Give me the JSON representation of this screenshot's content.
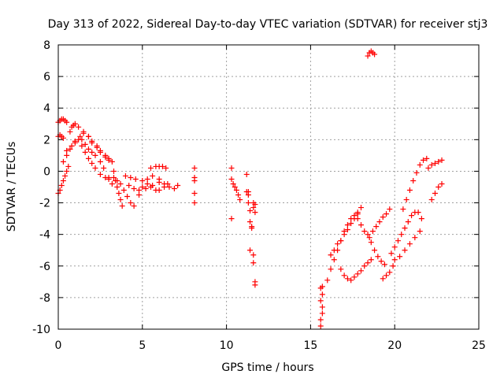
{
  "chart_data": {
    "type": "scatter",
    "title": "Day 313 of 2022, Sidereal Day-to-day VTEC variation (SDTVAR) for receiver stj3",
    "xlabel": "GPS time / hours",
    "ylabel": "SDTVAR / TECUs",
    "xlim": [
      0,
      25
    ],
    "ylim": [
      -10,
      8
    ],
    "xticks": [
      0,
      5,
      10,
      15,
      20,
      25
    ],
    "xtick_labels": [
      "0",
      "5",
      "10",
      "15",
      "20",
      "25"
    ],
    "yticks": [
      -10,
      -8,
      -6,
      -4,
      -2,
      0,
      2,
      4,
      6,
      8
    ],
    "ytick_labels": [
      "-10",
      "-8",
      "-6",
      "-4",
      "-2",
      "0",
      "2",
      "4",
      "6",
      "8"
    ],
    "grid": true,
    "marker": "+",
    "color": "#ff0000",
    "series": [
      {
        "name": "SDTVAR",
        "x": [
          0.0,
          0.1,
          0.2,
          0.3,
          0.4,
          0.5,
          0.0,
          0.1,
          0.2,
          0.3,
          0.0,
          0.1,
          0.2,
          0.3,
          0.4,
          0.5,
          0.6,
          0.7,
          0.8,
          0.9,
          1.0,
          1.2,
          1.5,
          1.8,
          2.0,
          2.3,
          2.5,
          2.8,
          3.0,
          0.5,
          0.8,
          1.0,
          1.3,
          1.5,
          1.8,
          2.0,
          2.3,
          2.5,
          2.8,
          3.0,
          3.2,
          0.3,
          0.5,
          0.7,
          1.0,
          1.2,
          1.4,
          1.6,
          1.8,
          2.0,
          2.2,
          2.5,
          2.8,
          3.0,
          3.3,
          1.4,
          1.6,
          1.8,
          2.0,
          2.2,
          2.5,
          2.7,
          3.0,
          3.2,
          3.3,
          3.4,
          3.5,
          3.6,
          3.7,
          3.8,
          3.5,
          3.7,
          3.9,
          4.1,
          4.3,
          4.5,
          4.8,
          5.0,
          5.3,
          5.5,
          5.8,
          6.0,
          6.3,
          6.5,
          4.0,
          4.3,
          4.6,
          5.0,
          5.3,
          5.6,
          6.0,
          6.3,
          6.6,
          6.9,
          7.1,
          4.2,
          4.5,
          4.8,
          5.2,
          5.6,
          6.0,
          5.5,
          5.8,
          6.0,
          6.2,
          6.4,
          8.1,
          8.1,
          8.1,
          8.1,
          8.1,
          10.3,
          10.3,
          10.4,
          10.5,
          10.6,
          10.7,
          10.8,
          10.3,
          11.2,
          11.3,
          11.3,
          11.4,
          11.4,
          11.5,
          11.6,
          11.6,
          11.7,
          11.7,
          11.7,
          11.7,
          11.2,
          11.3,
          11.4,
          11.5,
          11.6,
          11.6,
          15.6,
          15.6,
          15.7,
          15.7,
          15.6,
          15.7,
          15.6,
          15.7,
          16.0,
          16.2,
          16.4,
          16.6,
          16.8,
          17.0,
          17.2,
          17.4,
          17.6,
          17.8,
          18.0,
          16.2,
          16.4,
          16.6,
          16.8,
          17.0,
          17.2,
          17.4,
          17.6,
          17.8,
          16.8,
          17.0,
          17.2,
          17.4,
          17.6,
          17.8,
          18.0,
          18.2,
          18.4,
          18.6,
          17.8,
          18.0,
          18.2,
          18.4,
          18.6,
          18.8,
          19.0,
          19.2,
          19.4,
          18.5,
          18.7,
          18.9,
          19.1,
          19.3,
          19.5,
          19.7,
          18.4,
          18.5,
          18.6,
          18.7,
          18.8,
          19.3,
          19.5,
          19.7,
          19.9,
          19.8,
          20.0,
          20.2,
          20.4,
          20.6,
          20.8,
          21.0,
          21.2,
          21.4,
          21.6,
          20.5,
          20.7,
          20.9,
          21.1,
          21.3,
          21.5,
          21.7,
          21.9,
          20.0,
          20.3,
          20.6,
          20.9,
          21.2,
          21.5,
          22.0,
          22.2,
          22.4,
          22.6,
          22.8,
          22.2,
          22.4,
          22.6,
          22.8
        ],
        "y": [
          3.1,
          3.2,
          3.3,
          3.3,
          3.2,
          3.1,
          2.2,
          2.3,
          2.2,
          2.1,
          -1.4,
          -1.2,
          -0.9,
          -0.6,
          -0.3,
          0.0,
          0.3,
          2.5,
          2.8,
          2.9,
          3.0,
          2.8,
          2.5,
          2.2,
          1.8,
          1.5,
          1.2,
          0.9,
          0.7,
          1.3,
          1.6,
          1.9,
          2.2,
          2.4,
          2.2,
          1.9,
          1.6,
          1.3,
          1.0,
          0.8,
          0.6,
          0.6,
          1.0,
          1.4,
          1.8,
          2.0,
          1.6,
          1.2,
          0.8,
          0.5,
          0.2,
          -0.2,
          -0.4,
          -0.5,
          -0.4,
          2.0,
          1.7,
          1.4,
          1.2,
          1.0,
          0.6,
          0.2,
          -0.4,
          -0.8,
          0.0,
          -0.6,
          -1.0,
          -1.4,
          -1.8,
          -2.2,
          -0.6,
          -0.8,
          -1.2,
          -1.6,
          -2.0,
          -2.2,
          -1.5,
          -1.0,
          -0.8,
          -1.0,
          -1.2,
          -1.2,
          -1.0,
          -0.8,
          -0.3,
          -0.4,
          -0.5,
          -0.6,
          -0.5,
          -0.3,
          -0.5,
          -0.8,
          -1.0,
          -1.1,
          -0.9,
          -0.9,
          -1.1,
          -1.2,
          -1.1,
          -0.9,
          -0.7,
          0.2,
          0.3,
          0.3,
          0.3,
          0.2,
          0.2,
          -0.6,
          -1.4,
          -2.0,
          -0.4,
          0.2,
          -0.5,
          -0.8,
          -1.0,
          -1.2,
          -1.5,
          -1.8,
          -3.0,
          -1.3,
          -1.5,
          -2.0,
          -2.5,
          -3.2,
          -3.5,
          -5.3,
          -5.8,
          -2.1,
          -2.6,
          -7.0,
          -7.2,
          -0.2,
          -1.3,
          -5.0,
          -3.6,
          -2.0,
          -2.3,
          -9.8,
          -9.4,
          -9.0,
          -8.6,
          -8.2,
          -7.8,
          -7.4,
          -7.3,
          -6.9,
          -6.2,
          -5.6,
          -5.0,
          -4.4,
          -3.8,
          -3.4,
          -3.0,
          -2.8,
          -2.6,
          -2.3,
          -5.3,
          -5.0,
          -4.6,
          -4.4,
          -4.0,
          -3.7,
          -3.3,
          -3.0,
          -2.7,
          -6.2,
          -6.6,
          -6.8,
          -6.9,
          -6.7,
          -6.5,
          -6.3,
          -6.0,
          -5.8,
          -5.6,
          -3.0,
          -3.4,
          -3.8,
          -4.0,
          -4.5,
          -5.0,
          -5.4,
          -5.7,
          -5.9,
          -4.2,
          -3.8,
          -3.5,
          -3.2,
          -2.9,
          -2.7,
          -2.4,
          7.3,
          7.5,
          7.6,
          7.5,
          7.4,
          -6.8,
          -6.6,
          -6.4,
          -6.0,
          -5.2,
          -4.8,
          -4.4,
          -4.0,
          -3.6,
          -3.2,
          -2.8,
          -2.6,
          -2.6,
          -3.0,
          -2.4,
          -1.8,
          -1.2,
          -0.6,
          -0.1,
          0.4,
          0.7,
          0.8,
          -5.6,
          -5.4,
          -5.0,
          -4.6,
          -4.2,
          -3.8,
          0.2,
          0.4,
          0.5,
          0.6,
          0.7,
          -1.8,
          -1.4,
          -1.0,
          -0.8
        ]
      }
    ]
  }
}
